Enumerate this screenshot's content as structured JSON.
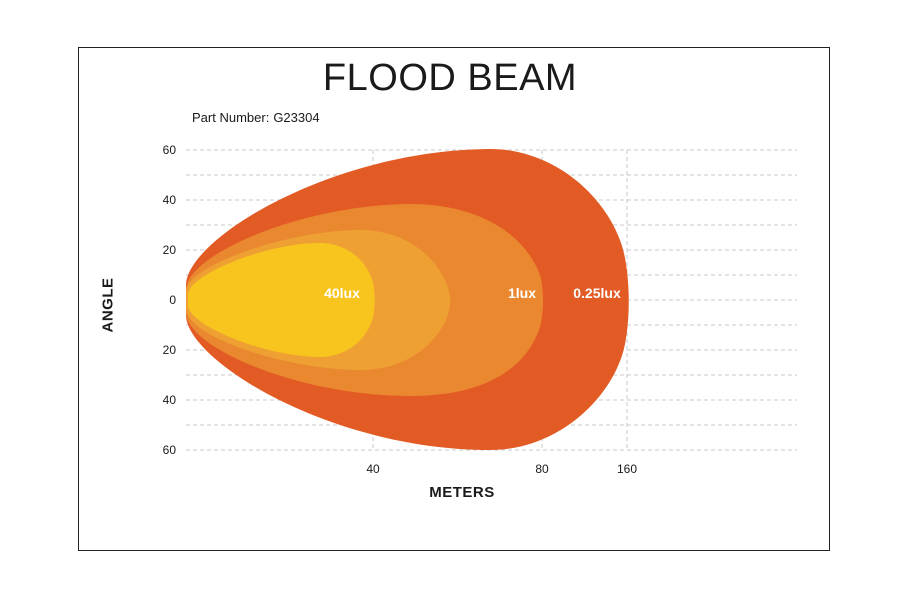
{
  "chart_data": {
    "type": "area",
    "title": "FLOOD BEAM",
    "part_number_label": "Part Number:",
    "part_number": "G23304",
    "xlabel": "METERS",
    "ylabel": "ANGLE",
    "x_ticks": [
      "40",
      "80",
      "160"
    ],
    "y_ticks": [
      "60",
      "40",
      "20",
      "0",
      "20",
      "40",
      "60"
    ],
    "ylim": [
      -60,
      60
    ],
    "grid": true,
    "zones": [
      {
        "label": "0.25lux",
        "reach": "160",
        "half_angle": 60,
        "color": "#E35B24"
      },
      {
        "label": "1lux",
        "reach": "80",
        "half_angle": 37,
        "color": "#EA8830"
      },
      {
        "label": "",
        "reach": "",
        "half_angle": 33,
        "color": "#EEA033"
      },
      {
        "label": "40lux",
        "reach": "40",
        "half_angle": 21,
        "color": "#F8C51E"
      }
    ]
  }
}
